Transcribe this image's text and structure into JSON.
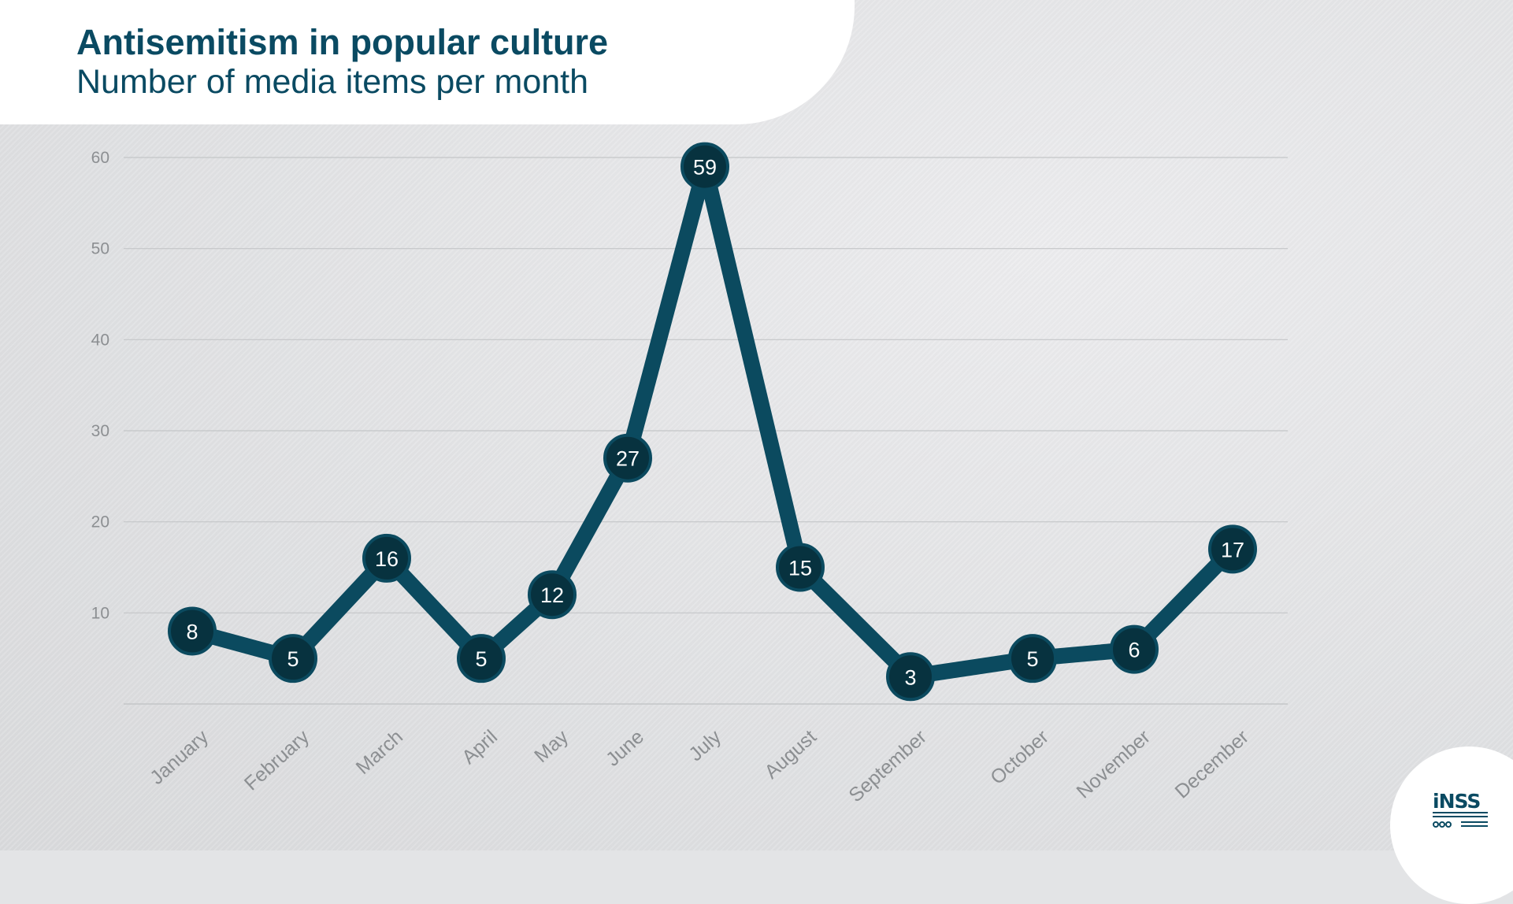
{
  "chart_data": {
    "type": "line",
    "title": "Antisemitism in popular culture",
    "subtitle": "Number of media items per month",
    "categories": [
      "January",
      "February",
      "March",
      "April",
      "May",
      "June",
      "July",
      "August",
      "September",
      "October",
      "November",
      "December"
    ],
    "values": [
      8,
      5,
      16,
      5,
      12,
      27,
      59,
      15,
      3,
      5,
      6,
      17
    ],
    "ylim": [
      0,
      60
    ],
    "yticks": [
      10,
      20,
      30,
      40,
      50,
      60
    ],
    "grid": true,
    "legend": "none",
    "data_labels": true
  },
  "colors": {
    "line": "#0b4a5f",
    "marker": "#07323f",
    "marker_outline": "#0b4a5f",
    "title": "#0a4a62",
    "gridline": "#c4c6c8",
    "tick_label": "#8c8f92"
  },
  "logo": {
    "text": "iNSS"
  }
}
